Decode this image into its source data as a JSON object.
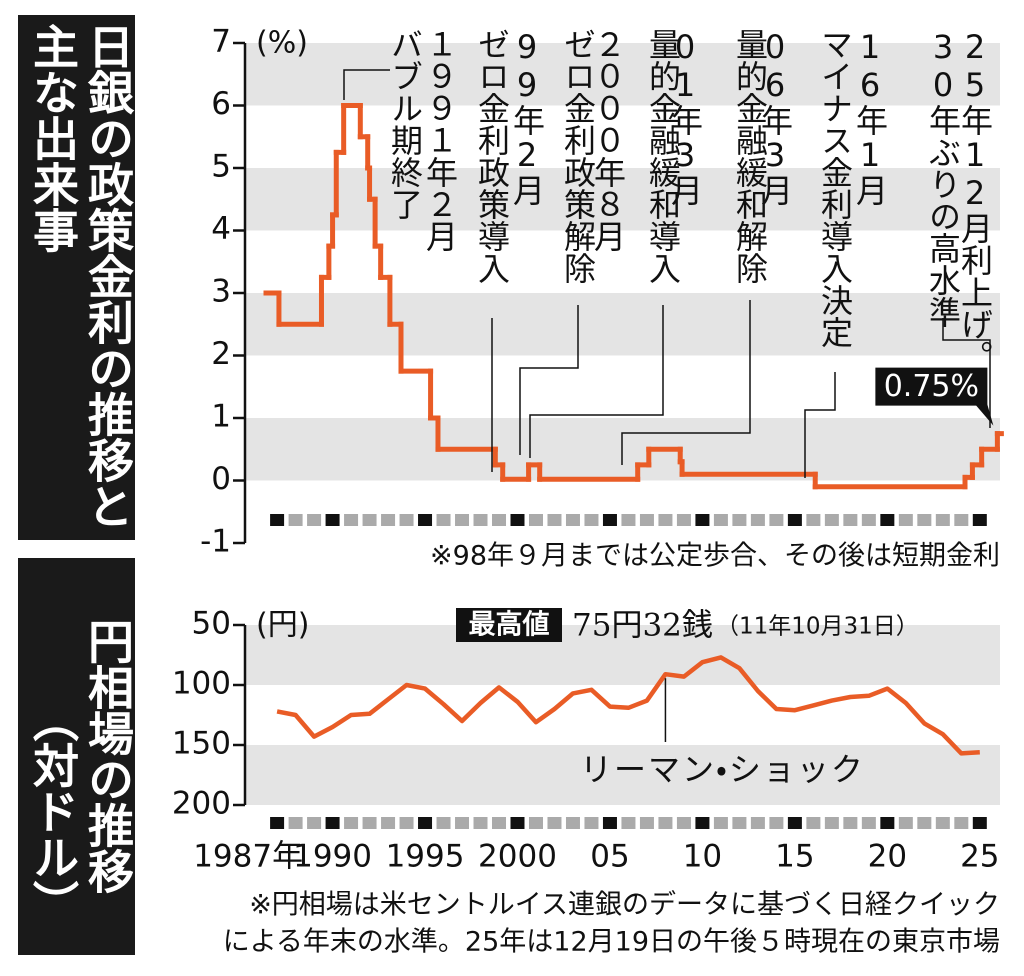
{
  "chart_data": [
    {
      "type": "line",
      "title": "日銀の政策金利の推移と主な出来事",
      "y_unit": "(%)",
      "step": true,
      "color": "#e95c26",
      "x": [
        1986.4,
        1987.1,
        1989.4,
        1989.8,
        1990.0,
        1990.2,
        1990.6,
        1991.5,
        1991.9,
        1992.0,
        1992.3,
        1992.6,
        1993.1,
        1993.7,
        1995.3,
        1995.7,
        1998.8,
        1999.2,
        2000.6,
        2001.2,
        2006.5,
        2007.1,
        2008.8,
        2008.9,
        2016.1,
        2024.2,
        2024.6,
        2025.1,
        2025.95
      ],
      "values": [
        3,
        2.5,
        3.25,
        3.75,
        4.25,
        5.25,
        6,
        5.5,
        5,
        4.5,
        3.75,
        3.25,
        2.5,
        1.75,
        1,
        0.5,
        0.25,
        0.02,
        0.25,
        0.02,
        0.25,
        0.5,
        0.3,
        0.1,
        -0.1,
        0.05,
        0.25,
        0.5,
        0.75
      ],
      "value_labels": [
        null,
        null,
        null,
        null,
        null,
        null,
        null,
        null,
        null,
        null,
        null,
        null,
        null,
        null,
        null,
        null,
        null,
        null,
        null,
        null,
        null,
        null,
        null,
        null,
        null,
        null,
        null,
        null,
        "0.75%"
      ],
      "xlim": [
        1986.4,
        2026.2
      ],
      "xticks": [
        1987,
        1990,
        1995,
        2000,
        2005,
        2010,
        2015,
        2020,
        2025
      ],
      "ylim": [
        -1,
        7
      ],
      "yticks": [
        -1,
        0,
        1,
        2,
        3,
        4,
        5,
        6,
        7
      ],
      "grid": true,
      "grid_color": "#e4e4e4",
      "annotations": [
        {
          "lines": [
            "１９９１年２月",
            "バブル期終了"
          ]
        },
        {
          "lines": [
            "99年2月",
            "ゼロ金利政策導入"
          ]
        },
        {
          "lines": [
            "２０００年８月",
            "ゼロ金利政策解除"
          ]
        },
        {
          "lines": [
            "01年3月",
            "量的金融緩和導入"
          ]
        },
        {
          "lines": [
            "06年3月",
            "量的金融緩和解除"
          ]
        },
        {
          "lines": [
            "16年1月",
            "マイナス金利導入決定"
          ]
        },
        {
          "lines": [
            "25年12月利上げ。",
            "30年ぶりの高水準"
          ]
        }
      ],
      "note": "※98年９月までは公定歩合、その後は短期金利"
    },
    {
      "type": "line",
      "title": "円相場の推移",
      "subtitle": "（対ドル）",
      "y_unit": "(円)",
      "color": "#e95c26",
      "x": [
        1987,
        1988,
        1989,
        1990,
        1991,
        1992,
        1993,
        1994,
        1995,
        1996,
        1997,
        1998,
        1999,
        2000,
        2001,
        2002,
        2003,
        2004,
        2005,
        2006,
        2007,
        2008,
        2009,
        2010,
        2011,
        2012,
        2013,
        2014,
        2015,
        2016,
        2017,
        2018,
        2019,
        2020,
        2021,
        2022,
        2023,
        2024,
        2025
      ],
      "values": [
        122,
        125,
        143,
        135,
        125,
        124,
        112,
        100,
        103,
        116,
        130,
        115,
        102,
        114,
        131,
        120,
        107,
        104,
        118,
        119,
        113,
        91,
        93,
        81,
        77,
        86,
        105,
        120,
        121,
        117,
        113,
        110,
        109,
        103,
        115,
        132,
        141,
        157,
        156
      ],
      "xlim": [
        1986.4,
        2026.2
      ],
      "xticks": [
        {
          "value": 1987,
          "label": "1987年"
        },
        1990,
        1995,
        2000,
        {
          "value": 2005,
          "label": "05"
        },
        {
          "value": 2010,
          "label": "10"
        },
        {
          "value": 2015,
          "label": "15"
        },
        {
          "value": 2020,
          "label": "20"
        },
        {
          "value": 2025,
          "label": "25"
        }
      ],
      "ylim": [
        200,
        50
      ],
      "yticks": [
        50,
        100,
        150,
        200
      ],
      "grid": true,
      "grid_color": "#e4e4e4",
      "peak": {
        "badge": "最高値",
        "text": "75円32銭",
        "date": "（11年10月31日）"
      },
      "event": {
        "text": "リーマン・ショック"
      },
      "notes": [
        "※円相場は米セントルイス連銀のデータに基づく日経クイック",
        "による年末の水準。25年は12月19日の午後５時現在の東京市場"
      ]
    }
  ]
}
